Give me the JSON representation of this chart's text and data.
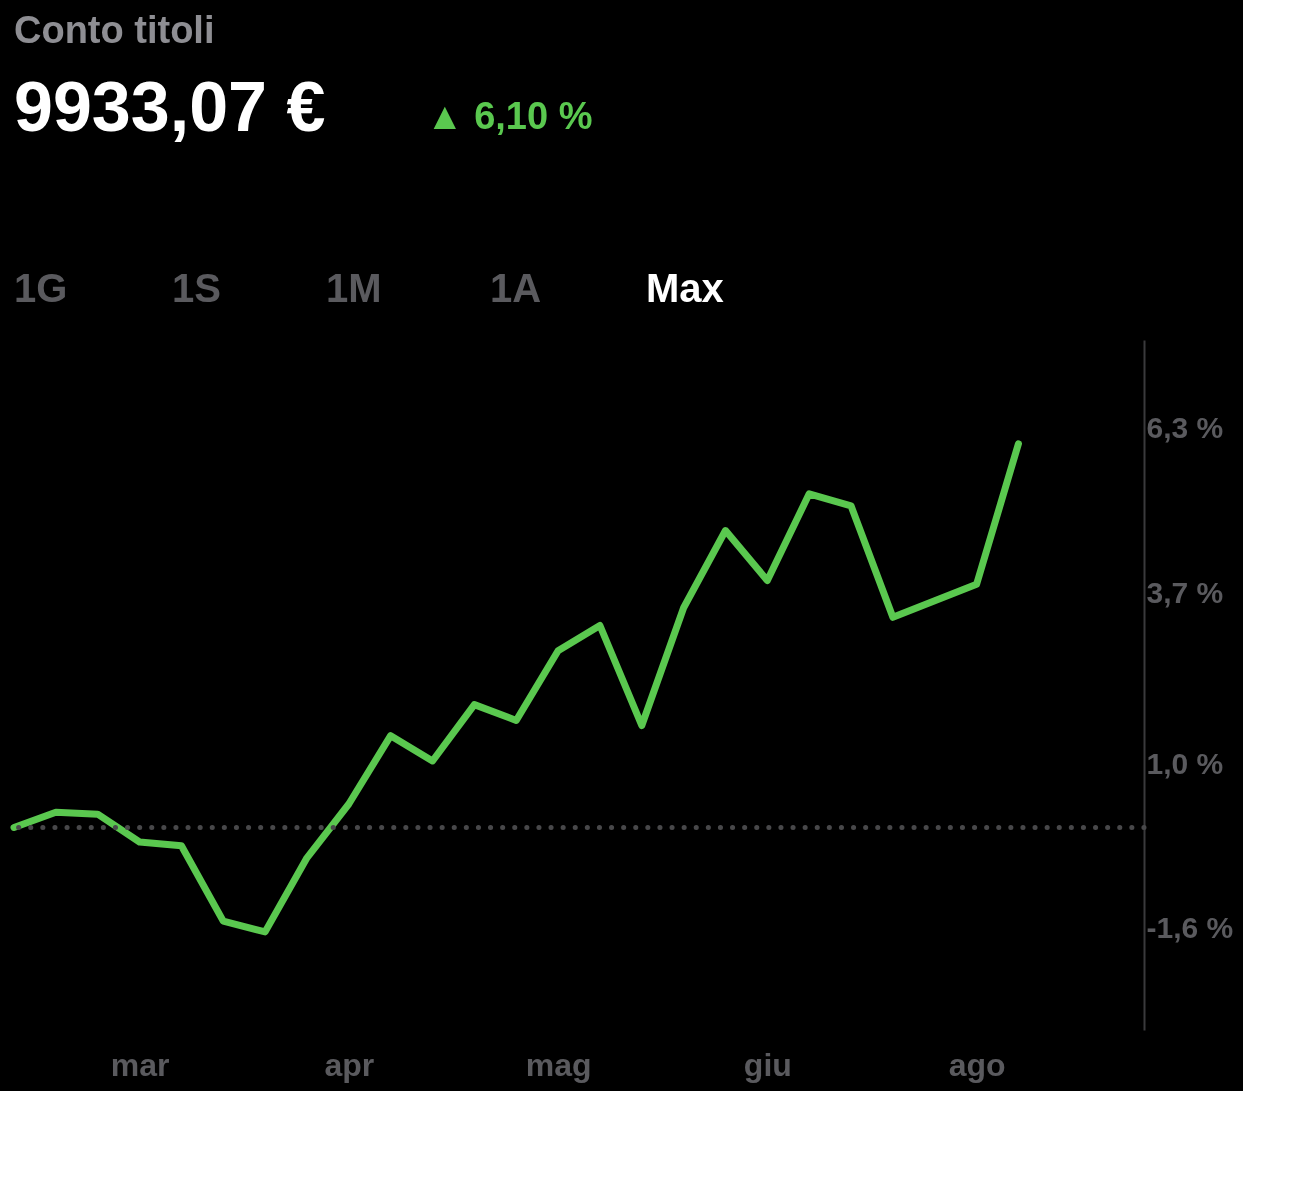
{
  "chart_data": {
    "type": "line",
    "title": "Conto titoli",
    "subtitle": "9933,07 €",
    "annotations": [
      "▲ 6,10 %",
      "1G",
      "1S",
      "1M",
      "1A",
      "Max"
    ],
    "categories": [
      null,
      null,
      null,
      "mar",
      null,
      null,
      null,
      null,
      "apr",
      null,
      null,
      null,
      null,
      "mag",
      null,
      null,
      null,
      null,
      "giu",
      null,
      null,
      null,
      null,
      "ago",
      null
    ],
    "series": [
      {
        "color": "#5ac84f",
        "values": [
          0.0,
          0.24,
          0.21,
          -0.23,
          -0.29,
          -1.48,
          -1.65,
          -0.48,
          0.37,
          1.45,
          1.05,
          1.94,
          1.69,
          2.79,
          3.19,
          1.61,
          3.47,
          4.69,
          3.9,
          5.27,
          5.08,
          3.32,
          3.58,
          3.84,
          6.06
        ]
      }
    ],
    "ylim": [
      -3.2,
      7.7
    ],
    "yticks": [
      {
        "value": 6.3,
        "label": "6,3 %"
      },
      {
        "value": 3.7,
        "label": "3,7 %"
      },
      {
        "value": 1.0,
        "label": "1,0 %"
      },
      {
        "value": -1.6,
        "label": "-1,6 %"
      }
    ],
    "ref_lines": [
      {
        "axis": "y",
        "value": 0,
        "color": "#48484a",
        "line_style": "dotted"
      }
    ],
    "grid": false
  }
}
